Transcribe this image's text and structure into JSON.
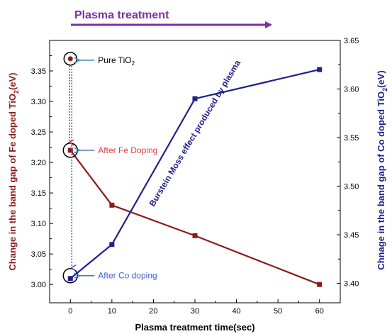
{
  "chart_data": {
    "type": "line",
    "title": "",
    "top_annotation": "Plasma treatment",
    "xlabel": "Plasma treatment time(sec)",
    "x_ticks": [
      0,
      10,
      20,
      30,
      40,
      50,
      60
    ],
    "xlim": [
      -5,
      65
    ],
    "ylabel_left": "Change in the band gap of Fe doped TiO",
    "ylabel_left_sub": "2",
    "ylabel_left_unit": "(eV)",
    "ylim_left": [
      2.97,
      3.4
    ],
    "y_ticks_left": [
      "3.00",
      "3.05",
      "3.10",
      "3.15",
      "3.20",
      "3.25",
      "3.30",
      "3.35"
    ],
    "ylabel_right": "Chnage in the band gap of Co doped TiO",
    "ylabel_right_sub": "2",
    "ylabel_right_unit": "(eV)",
    "ylim_right": [
      3.38,
      3.65
    ],
    "y_ticks_right": [
      "3.40",
      "3.45",
      "3.50",
      "3.55",
      "3.60",
      "3.65"
    ],
    "series": [
      {
        "axis": "left",
        "color": "#8b1a1a",
        "points": [
          [
            0,
            3.22
          ],
          [
            10,
            3.13
          ],
          [
            30,
            3.08
          ],
          [
            60,
            3.0
          ]
        ]
      },
      {
        "axis": "right",
        "color": "#1f1f8f",
        "points": [
          [
            0,
            3.405
          ],
          [
            10,
            3.44
          ],
          [
            30,
            3.59
          ],
          [
            60,
            3.62
          ]
        ]
      }
    ],
    "pure_point": {
      "axis": "left",
      "x": 0,
      "y": 3.37,
      "color": "#8b1a1a"
    },
    "annotations": {
      "pure_tio2": "Pure TiO",
      "pure_tio2_sub": "2",
      "after_fe": "After Fe Doping",
      "after_co": "After Co doping",
      "diagonal": "Burstein Moss effect produced by plasma"
    },
    "colors": {
      "fe": "#8b1a1a",
      "co": "#1f1f8f",
      "arrow_top": "#7b2fa8",
      "callout": "#3a7abf",
      "fe_text": "#d94040",
      "co_text": "#3a5fcd",
      "dotted_fe": "#cc2222",
      "dotted_co": "#3355dd"
    }
  }
}
